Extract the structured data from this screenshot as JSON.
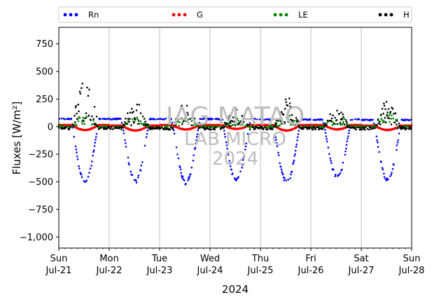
{
  "chart_data": {
    "type": "scatter",
    "ylabel": "Fluxes [W/m²]",
    "xlabel": "2024",
    "ylim": [
      -1100,
      900
    ],
    "yticks": [
      750,
      500,
      250,
      0,
      -250,
      -500,
      -750,
      -1000
    ],
    "xlim": [
      0,
      7
    ],
    "xticks": [
      {
        "day": 0,
        "dow": "Sun",
        "date": "Jul-21"
      },
      {
        "day": 1,
        "dow": "Mon",
        "date": "Jul-22"
      },
      {
        "day": 2,
        "dow": "Tue",
        "date": "Jul-23"
      },
      {
        "day": 3,
        "dow": "Wed",
        "date": "Jul-24"
      },
      {
        "day": 4,
        "dow": "Thu",
        "date": "Jul-25"
      },
      {
        "day": 5,
        "dow": "Fri",
        "date": "Jul-26"
      },
      {
        "day": 6,
        "dow": "Sat",
        "date": "Jul-27"
      },
      {
        "day": 7,
        "dow": "Sun",
        "date": "Jul-28"
      }
    ],
    "grid_x": true,
    "legend_position": "top",
    "series": [
      {
        "name": "Rn",
        "color": "#0000ff"
      },
      {
        "name": "G",
        "color": "#ff0000"
      },
      {
        "name": "LE",
        "color": "#008000"
      },
      {
        "name": "H",
        "color": "#000000"
      }
    ],
    "daily": {
      "rn_min": [
        -500,
        -495,
        -505,
        -490,
        -505,
        -455,
        -480
      ],
      "rn_night": [
        70,
        70,
        70,
        68,
        65,
        65,
        60
      ],
      "h_max": [
        390,
        200,
        190,
        150,
        260,
        170,
        210
      ],
      "le_max": [
        120,
        90,
        100,
        80,
        110,
        120,
        150
      ],
      "g_min": [
        -30,
        -35,
        -25,
        -20,
        -35,
        -25,
        -30
      ],
      "g_night": [
        15,
        10,
        15,
        15,
        15,
        15,
        10
      ]
    }
  },
  "watermark": {
    "line1": "IAG MATAO",
    "line2": "LAB MICRO",
    "line3": "2024"
  }
}
